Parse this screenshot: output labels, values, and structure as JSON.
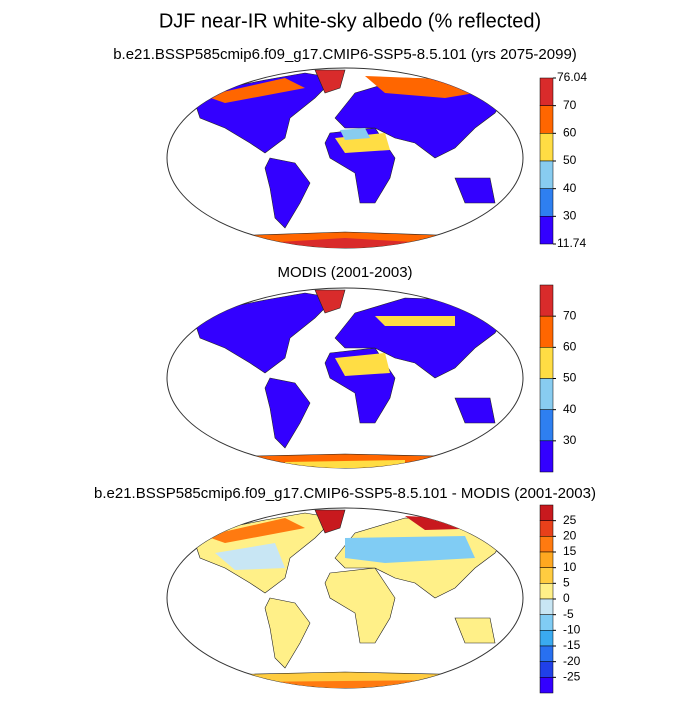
{
  "title": "DJF near-IR white-sky albedo (% reflected)",
  "panels": [
    {
      "subtitle": "b.e21.BSSP585cmip6.f09_g17.CMIP6-SSP5-8.5.101 (yrs 2075-2099)",
      "colorbar": {
        "colors": [
          "#d92b2b",
          "#ff6600",
          "#ffdd44",
          "#88ccf0",
          "#2e7ff0",
          "#3300ff"
        ],
        "ticks": [
          76.04,
          70,
          60,
          50,
          40,
          30,
          11.74
        ]
      }
    },
    {
      "subtitle": "MODIS (2001-2003)",
      "colorbar": {
        "colors": [
          "#d92b2b",
          "#ff6600",
          "#ffdd44",
          "#88ccf0",
          "#2e7ff0",
          "#3300ff"
        ],
        "ticks": [
          70,
          60,
          50,
          40,
          30
        ]
      }
    },
    {
      "subtitle": "b.e21.BSSP585cmip6.f09_g17.CMIP6-SSP5-8.5.101 - MODIS (2001-2003)",
      "colorbar": {
        "colors": [
          "#c8191e",
          "#e8401a",
          "#ff7a10",
          "#ffa820",
          "#ffcc40",
          "#fff088",
          "#c8e6f4",
          "#80ccf4",
          "#3aaaf0",
          "#2870f0",
          "#2040e8",
          "#3300ff"
        ],
        "ticks": [
          25,
          20,
          15,
          10,
          5,
          0,
          -5,
          -10,
          -15,
          -20,
          -25
        ]
      }
    }
  ]
}
